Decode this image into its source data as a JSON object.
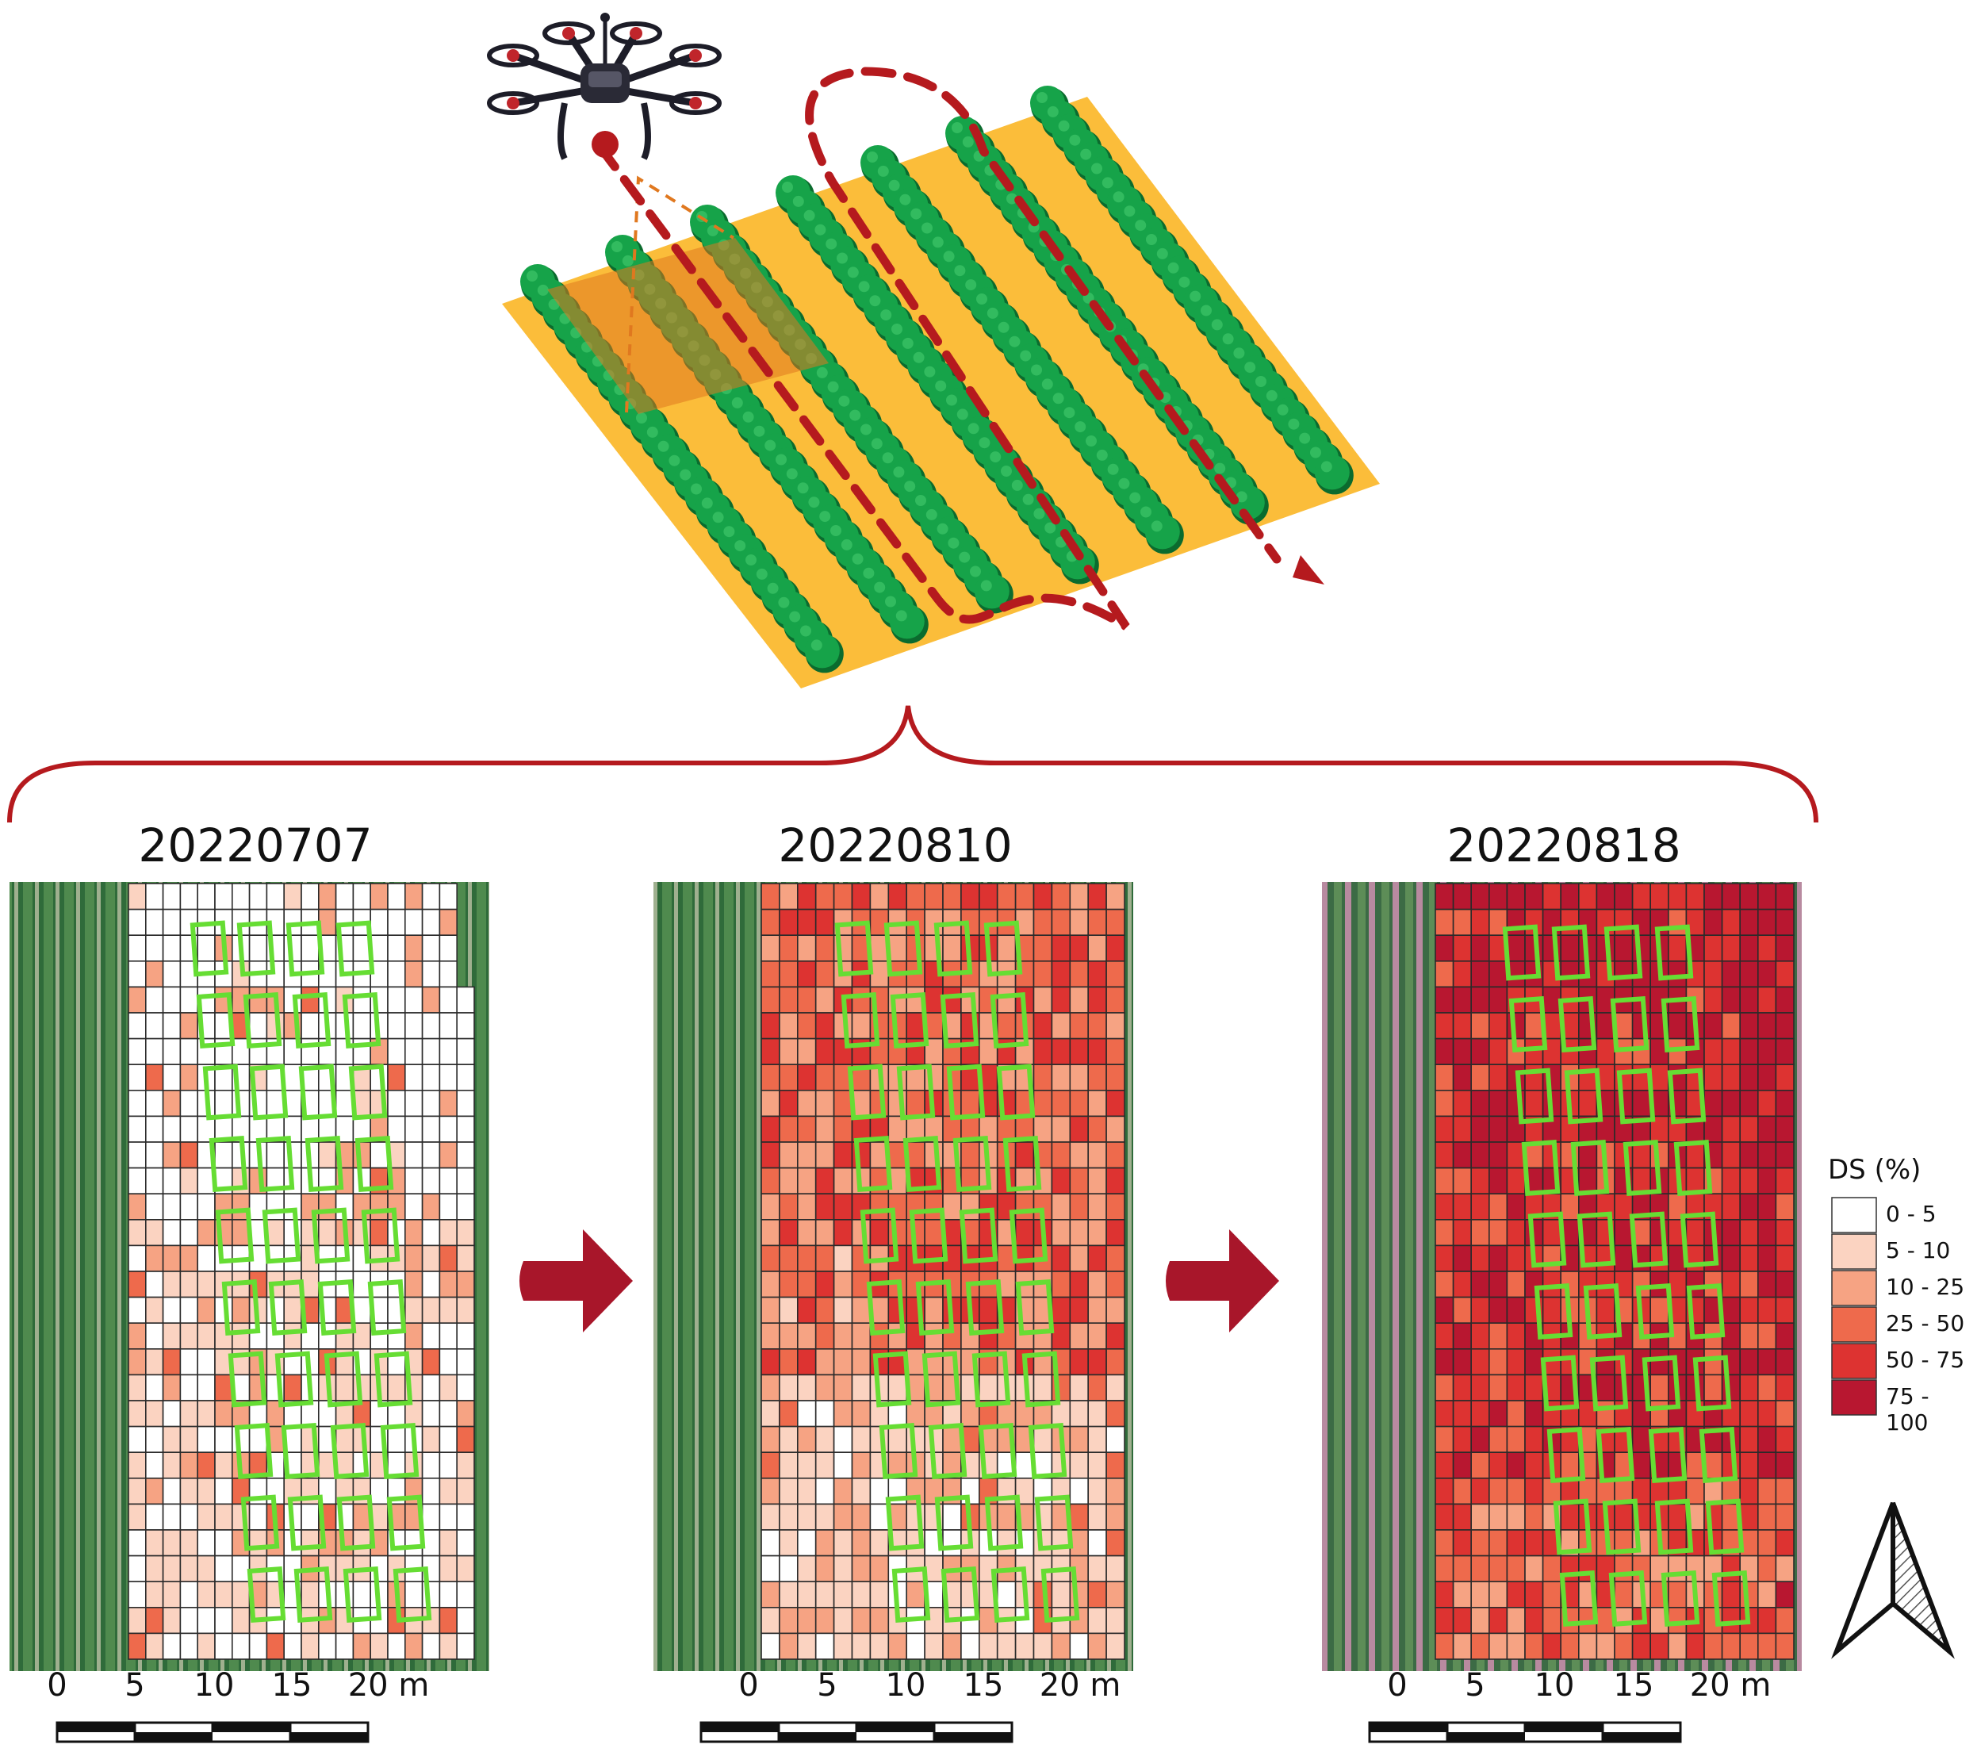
{
  "maps": [
    {
      "date": "20220707",
      "severity": 0.15
    },
    {
      "date": "20220810",
      "severity": 0.55
    },
    {
      "date": "20220818",
      "severity": 0.85
    }
  ],
  "scale_bar": {
    "labels": [
      "0",
      "5",
      "10",
      "15",
      "20 m"
    ]
  },
  "legend": {
    "title": "DS (%)",
    "classes": [
      {
        "label": "0 - 5",
        "color": "#ffffff"
      },
      {
        "label": "5 - 10",
        "color": "#fbd3c1"
      },
      {
        "label": "10 - 25",
        "color": "#f6a383"
      },
      {
        "label": "25 - 50",
        "color": "#ee6a4c"
      },
      {
        "label": "50 - 75",
        "color": "#dd3331"
      },
      {
        "label": "75 - 100",
        "color": "#b81730"
      }
    ]
  },
  "colors": {
    "flight_path": "#b51a1e",
    "field": "#fbbd3a",
    "plant": "#16a349",
    "plant_dark": "#0b6b2e",
    "plot_outline": "#66dd33",
    "footprint": "#e0781f",
    "arrow": "#a8162a"
  },
  "icons": [
    "drone-icon",
    "north-arrow-icon",
    "right-arrow-icon",
    "brace-icon"
  ]
}
